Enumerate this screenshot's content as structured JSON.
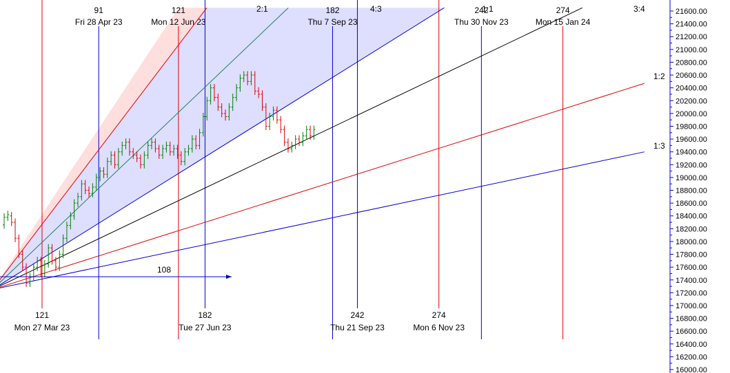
{
  "chart_data": {
    "type": "line",
    "description_free": true,
    "y_axis": {
      "position": "right",
      "min": 16000,
      "max": 21600,
      "step": 200,
      "tick_labels": [
        "21600.00",
        "21400.00",
        "21200.00",
        "21000.00",
        "20800.00",
        "20600.00",
        "20400.00",
        "20200.00",
        "20000.00",
        "19800.00",
        "19600.00",
        "19400.00",
        "19200.00",
        "19000.00",
        "18800.00",
        "18600.00",
        "18400.00",
        "18200.00",
        "18000.00",
        "17800.00",
        "17600.00",
        "17400.00",
        "17200.00",
        "17000.00",
        "16800.00",
        "16600.00",
        "16400.00",
        "16200.00",
        "16000.00"
      ]
    },
    "time_lines": [
      {
        "count": "121",
        "date": "Mon 27 Mar 23",
        "color": "#e00000",
        "label_pos": "bottom",
        "x_day": 0
      },
      {
        "count": "91",
        "date": "Fri 28 Apr 23",
        "color": "#0000cc",
        "label_pos": "top",
        "x_day": 32
      },
      {
        "count": "121",
        "date": "Mon 12 Jun 23",
        "color": "#e00000",
        "label_pos": "top",
        "x_day": 77
      },
      {
        "count": "182",
        "date": "Tue 27 Jun 23",
        "color": "#0000cc",
        "label_pos": "bottom",
        "x_day": 92
      },
      {
        "count": "182",
        "date": "Thu 7 Sep 23",
        "color": "#0000cc",
        "label_pos": "top",
        "x_day": 164
      },
      {
        "count": "242",
        "date": "Thu 21 Sep 23",
        "color": "#0000cc",
        "label_pos": "bottom",
        "x_day": 178
      },
      {
        "count": "274",
        "date": "Mon 6 Nov 23",
        "color": "#e00000",
        "label_pos": "bottom",
        "x_day": 224
      },
      {
        "count": "242",
        "date": "Thu 30 Nov 23",
        "color": "#0000cc",
        "label_pos": "top",
        "x_day": 248
      },
      {
        "count": "274",
        "date": "Mon 15 Jan 24",
        "color": "#e00000",
        "label_pos": "top",
        "x_day": 294
      }
    ],
    "gann_fan": {
      "origin": {
        "x_day": -28,
        "price": 17250
      },
      "lines": [
        {
          "ratio": "2:1",
          "color": "#e00000",
          "end_x_day": 93,
          "end_price": 21650
        },
        {
          "ratio": "4:3",
          "color": "#208060",
          "end_x_day": 139,
          "end_price": 21650
        },
        {
          "ratio": "1:1",
          "color": "#0000cc",
          "end_x_day": 227,
          "end_price": 21650
        },
        {
          "ratio": "3:4",
          "color": "#000000",
          "end_x_day": 305,
          "end_price": 21650
        },
        {
          "ratio": "1:2",
          "color": "#e00000",
          "end_x_day": 340,
          "end_price": 20470
        },
        {
          "ratio": "1:3",
          "color": "#0000cc",
          "end_x_day": 340,
          "end_price": 19400
        }
      ],
      "ratio_labels_shown": [
        "2:1",
        "4:3",
        "1:1",
        "3:4",
        "1:2",
        "1:3"
      ]
    },
    "arrow": {
      "label": "108",
      "from_x_day": -28,
      "to_x_day": 107,
      "price": 17450,
      "color": "#0000cc"
    },
    "price_bars": [
      {
        "o": 18260,
        "c": 18380
      },
      {
        "o": 18380,
        "c": 18420
      },
      {
        "o": 18400,
        "c": 18300
      },
      {
        "o": 18300,
        "c": 18050
      },
      {
        "o": 18050,
        "c": 17800
      },
      {
        "o": 17800,
        "c": 17600
      },
      {
        "o": 17600,
        "c": 17350
      },
      {
        "o": 17350,
        "c": 17450
      },
      {
        "o": 17450,
        "c": 17600
      },
      {
        "o": 17600,
        "c": 17700
      },
      {
        "o": 17700,
        "c": 17500
      },
      {
        "o": 17500,
        "c": 17650
      },
      {
        "o": 17650,
        "c": 17900
      },
      {
        "o": 17900,
        "c": 17700
      },
      {
        "o": 17700,
        "c": 17600
      },
      {
        "o": 17600,
        "c": 17800
      },
      {
        "o": 17800,
        "c": 18050
      },
      {
        "o": 18050,
        "c": 18250
      },
      {
        "o": 18250,
        "c": 18400
      },
      {
        "o": 18400,
        "c": 18600
      },
      {
        "o": 18600,
        "c": 18700
      },
      {
        "o": 18700,
        "c": 18900
      },
      {
        "o": 18900,
        "c": 18800
      },
      {
        "o": 18800,
        "c": 18750
      },
      {
        "o": 18750,
        "c": 18850
      },
      {
        "o": 18850,
        "c": 19000
      },
      {
        "o": 19000,
        "c": 19100
      },
      {
        "o": 19100,
        "c": 19050
      },
      {
        "o": 19050,
        "c": 19250
      },
      {
        "o": 19250,
        "c": 19350
      },
      {
        "o": 19350,
        "c": 19200
      },
      {
        "o": 19200,
        "c": 19400
      },
      {
        "o": 19400,
        "c": 19500
      },
      {
        "o": 19500,
        "c": 19550
      },
      {
        "o": 19550,
        "c": 19400
      },
      {
        "o": 19400,
        "c": 19350
      },
      {
        "o": 19350,
        "c": 19300
      },
      {
        "o": 19300,
        "c": 19200
      },
      {
        "o": 19200,
        "c": 19350
      },
      {
        "o": 19350,
        "c": 19500
      },
      {
        "o": 19500,
        "c": 19550
      },
      {
        "o": 19550,
        "c": 19450
      },
      {
        "o": 19450,
        "c": 19350
      },
      {
        "o": 19350,
        "c": 19450
      },
      {
        "o": 19450,
        "c": 19500
      },
      {
        "o": 19500,
        "c": 19400
      },
      {
        "o": 19400,
        "c": 19450
      },
      {
        "o": 19450,
        "c": 19350
      },
      {
        "o": 19350,
        "c": 19250
      },
      {
        "o": 19250,
        "c": 19400
      },
      {
        "o": 19400,
        "c": 19450
      },
      {
        "o": 19450,
        "c": 19600
      },
      {
        "o": 19600,
        "c": 19500
      },
      {
        "o": 19500,
        "c": 19700
      },
      {
        "o": 19700,
        "c": 19950
      },
      {
        "o": 19950,
        "c": 20200
      },
      {
        "o": 20200,
        "c": 20400
      },
      {
        "o": 20400,
        "c": 20250
      },
      {
        "o": 20250,
        "c": 20100
      },
      {
        "o": 20100,
        "c": 20000
      },
      {
        "o": 20000,
        "c": 19950
      },
      {
        "o": 19950,
        "c": 20100
      },
      {
        "o": 20100,
        "c": 20250
      },
      {
        "o": 20250,
        "c": 20400
      },
      {
        "o": 20400,
        "c": 20550
      },
      {
        "o": 20550,
        "c": 20600
      },
      {
        "o": 20600,
        "c": 20500
      },
      {
        "o": 20500,
        "c": 20600
      },
      {
        "o": 20600,
        "c": 20350
      },
      {
        "o": 20350,
        "c": 20300
      },
      {
        "o": 20300,
        "c": 20100
      },
      {
        "o": 20100,
        "c": 19800
      },
      {
        "o": 19800,
        "c": 19950
      },
      {
        "o": 19950,
        "c": 20050
      },
      {
        "o": 20050,
        "c": 19900
      },
      {
        "o": 19900,
        "c": 19750
      },
      {
        "o": 19750,
        "c": 19550
      },
      {
        "o": 19550,
        "c": 19450
      },
      {
        "o": 19450,
        "c": 19500
      },
      {
        "o": 19500,
        "c": 19600
      },
      {
        "o": 19600,
        "c": 19550
      },
      {
        "o": 19550,
        "c": 19650
      },
      {
        "o": 19650,
        "c": 19750
      },
      {
        "o": 19750,
        "c": 19650
      },
      {
        "o": 19650,
        "c": 19750
      }
    ]
  }
}
